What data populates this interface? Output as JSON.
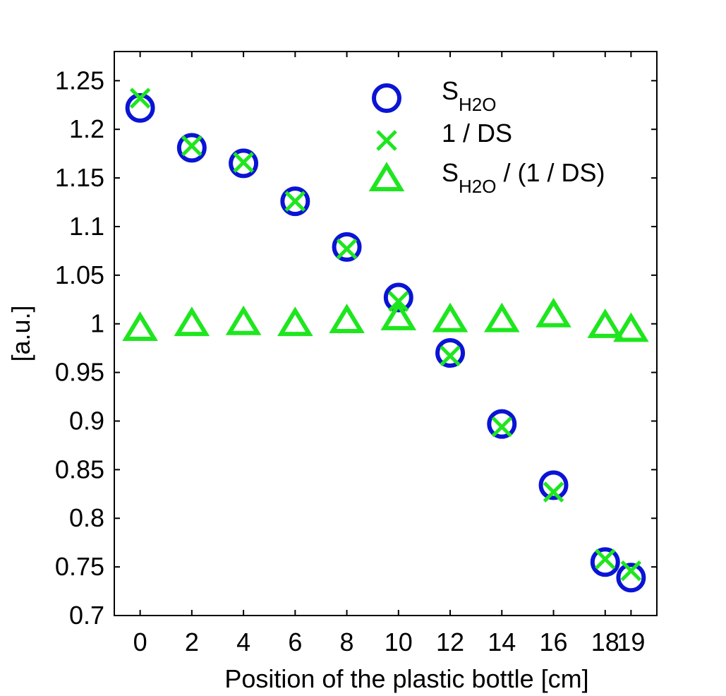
{
  "chart_data": {
    "type": "scatter",
    "title": "",
    "xlabel": "Position of the plastic bottle [cm]",
    "ylabel": "[a.u.]",
    "xlim": [
      -1,
      20
    ],
    "ylim": [
      0.7,
      1.28
    ],
    "grid": false,
    "legend_position": "top-right",
    "x_ticks": [
      0,
      2,
      4,
      6,
      8,
      10,
      12,
      14,
      16,
      18,
      19
    ],
    "x_tick_labels": [
      "0",
      "2",
      "4",
      "6",
      "8",
      "10",
      "12",
      "14",
      "16",
      "18",
      "19"
    ],
    "y_ticks": [
      0.7,
      0.75,
      0.8,
      0.85,
      0.9,
      0.95,
      1.0,
      1.05,
      1.1,
      1.15,
      1.2,
      1.25
    ],
    "y_tick_labels": [
      "0.7",
      "0.75",
      "0.8",
      "0.85",
      "0.9",
      "0.95",
      "1",
      "1.05",
      "1.1",
      "1.15",
      "1.2",
      "1.25"
    ],
    "x": [
      0,
      2,
      4,
      6,
      8,
      10,
      12,
      14,
      16,
      18,
      19
    ],
    "series": [
      {
        "name": "S_H2O",
        "legend_main": "S",
        "legend_sub": "H2O",
        "legend_tail": "",
        "marker": "circle",
        "color": "#0a14d4",
        "values": [
          1.222,
          1.181,
          1.165,
          1.126,
          1.079,
          1.027,
          0.97,
          0.897,
          0.834,
          0.755,
          0.739
        ]
      },
      {
        "name": "1 / DS",
        "legend_main": "1 / DS",
        "legend_sub": "",
        "legend_tail": "",
        "marker": "x",
        "color": "#1ee61e",
        "values": [
          1.232,
          1.183,
          1.166,
          1.126,
          1.077,
          1.023,
          0.967,
          0.894,
          0.827,
          0.758,
          0.746
        ]
      },
      {
        "name": "S_H2O / (1 / DS)",
        "legend_main": "S",
        "legend_sub": "H2O",
        "legend_tail": " / (1 / DS)",
        "marker": "triangle",
        "color": "#1ee61e",
        "values": [
          0.994,
          0.999,
          1.0,
          0.999,
          1.002,
          1.005,
          1.003,
          1.003,
          1.008,
          0.997,
          0.993
        ]
      }
    ]
  }
}
